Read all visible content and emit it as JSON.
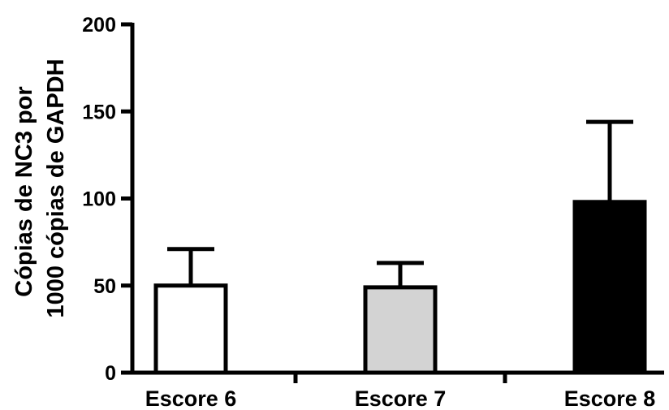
{
  "chart_data": {
    "type": "bar",
    "title": "",
    "xlabel": "",
    "ylabel_lines": [
      "Cópias de NC3 por",
      "1000 cópias de GAPDH"
    ],
    "categories": [
      "Escore 6",
      "Escore 7",
      "Escore 8"
    ],
    "values": [
      50,
      49,
      98
    ],
    "error_upper": [
      71,
      63,
      144
    ],
    "bar_colors": [
      "#ffffff",
      "#d3d3d3",
      "#000000"
    ],
    "ylim": [
      0,
      200
    ],
    "yticks": [
      0,
      50,
      100,
      150,
      200
    ],
    "grid": false,
    "legend": "none"
  }
}
